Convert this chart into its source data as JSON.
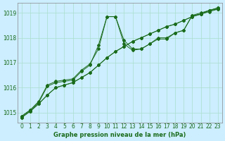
{
  "title": "Graphe pression niveau de la mer (hPa)",
  "bg_color": "#cceeff",
  "line_color": "#1a6b1a",
  "grid_color": "#aaddcc",
  "xlim": [
    -0.5,
    23.5
  ],
  "ylim": [
    1014.6,
    1019.4
  ],
  "yticks": [
    1015,
    1016,
    1017,
    1018,
    1019
  ],
  "xticks": [
    0,
    1,
    2,
    3,
    4,
    5,
    6,
    7,
    8,
    9,
    10,
    11,
    12,
    13,
    14,
    15,
    16,
    17,
    18,
    19,
    20,
    21,
    22,
    23
  ],
  "series": [
    {
      "x": [
        0,
        1,
        2,
        3,
        4,
        5,
        6,
        7,
        8,
        9,
        10,
        11,
        12,
        13,
        14,
        15,
        16,
        17,
        18,
        19,
        20,
        21,
        22,
        23
      ],
      "y": [
        1014.8,
        1015.05,
        1015.35,
        1015.7,
        1016.0,
        1016.1,
        1016.2,
        1016.4,
        1016.6,
        1016.9,
        1017.2,
        1017.45,
        1017.65,
        1017.85,
        1018.0,
        1018.15,
        1018.3,
        1018.45,
        1018.55,
        1018.7,
        1018.85,
        1018.95,
        1019.05,
        1019.15
      ]
    },
    {
      "x": [
        0,
        1,
        2,
        3,
        4,
        5,
        6,
        7,
        8,
        9,
        10,
        11,
        12,
        13,
        14,
        15,
        16,
        17,
        18,
        19,
        20,
        21,
        22,
        23
      ],
      "y": [
        1014.8,
        1015.05,
        1015.35,
        1015.7,
        1016.0,
        1016.1,
        1016.2,
        1016.4,
        1016.6,
        1016.9,
        1017.2,
        1017.45,
        1017.65,
        1017.85,
        1018.0,
        1018.15,
        1018.3,
        1018.45,
        1018.55,
        1018.7,
        1018.85,
        1018.95,
        1019.1,
        1019.2
      ]
    },
    {
      "x": [
        0,
        1,
        2,
        3,
        4,
        5,
        6,
        7,
        8,
        9,
        10,
        11,
        12,
        13,
        14,
        15,
        16,
        17,
        18,
        19,
        20,
        21,
        22,
        23
      ],
      "y": [
        1014.85,
        1015.1,
        1015.4,
        1016.05,
        1016.2,
        1016.25,
        1016.3,
        1016.65,
        1016.9,
        1017.7,
        1018.85,
        1018.85,
        1017.9,
        1017.55,
        1017.55,
        1017.75,
        1018.0,
        1018.0,
        1018.2,
        1018.3,
        1018.9,
        1019.0,
        1019.1,
        1019.2
      ]
    },
    {
      "x": [
        0,
        1,
        2,
        3,
        4,
        5,
        6,
        7,
        8,
        9,
        10,
        11,
        12,
        13,
        14,
        15,
        16,
        17,
        18,
        19,
        20,
        21,
        22,
        23
      ],
      "y": [
        1014.85,
        1015.1,
        1015.45,
        1016.1,
        1016.25,
        1016.3,
        1016.35,
        1016.7,
        1016.95,
        1017.55,
        1018.85,
        1018.85,
        1017.75,
        1017.5,
        1017.55,
        1017.75,
        1017.95,
        1017.95,
        1018.2,
        1018.3,
        1018.9,
        1018.95,
        1019.1,
        1019.15
      ]
    }
  ]
}
